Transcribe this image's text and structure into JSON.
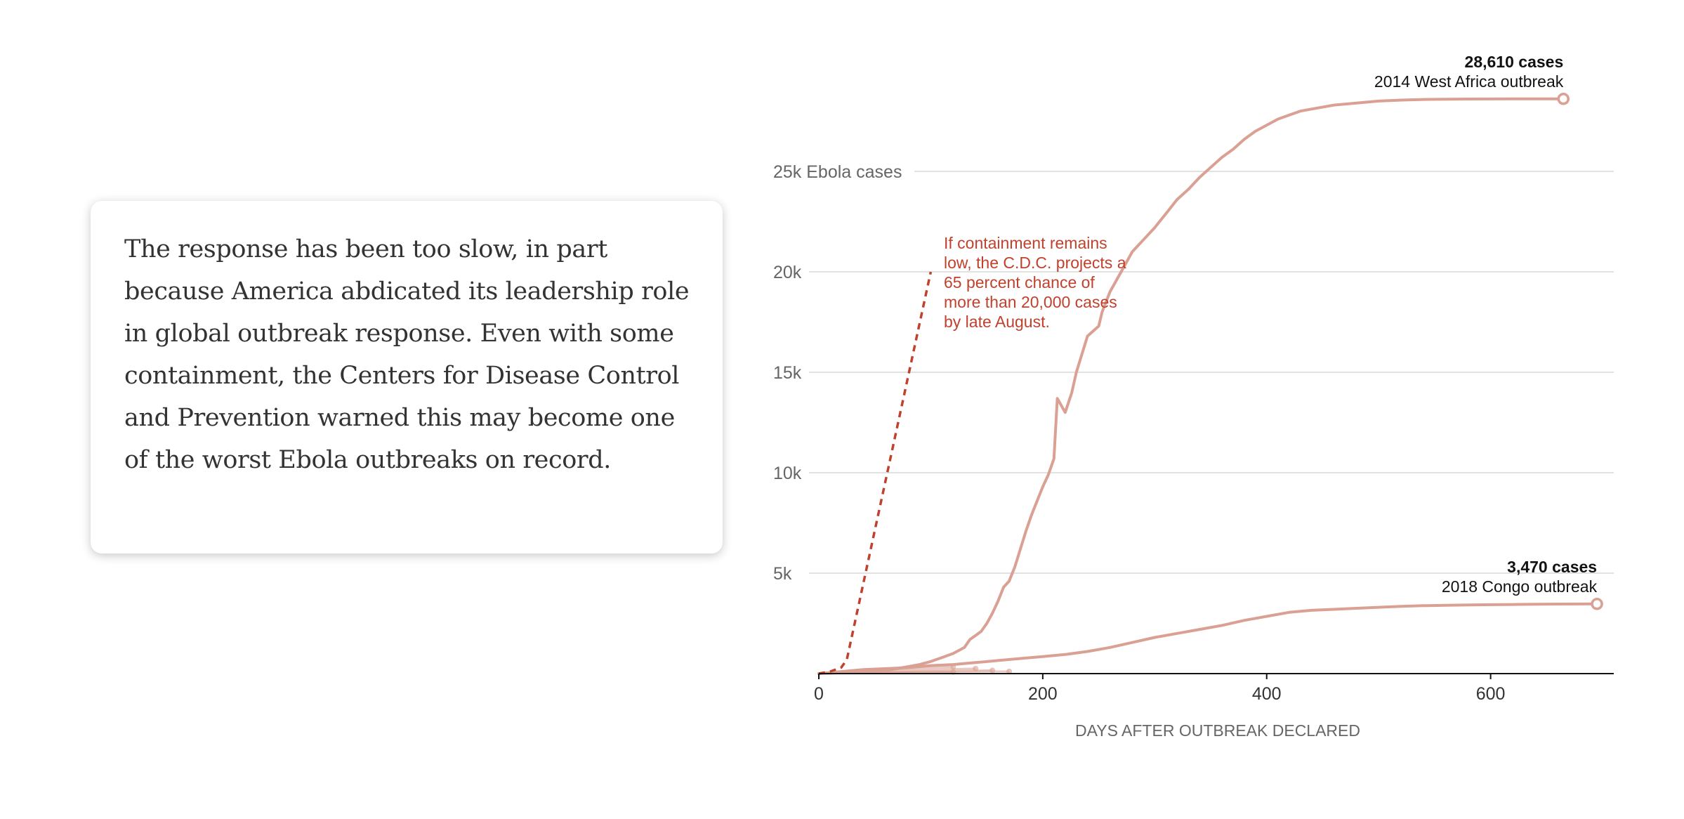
{
  "quote": {
    "text": "The response has been too slow, in part because America abdicated its leadership role in global outbreak response. Even with some containment, the Centers for Disease Control and Prevention warned this may become one of the worst Ebola outbreaks on record."
  },
  "chart_data": {
    "type": "line",
    "xlabel": "DAYS AFTER OUTBREAK DECLARED",
    "ylabel": "Ebola cases",
    "xlim": [
      0,
      710
    ],
    "ylim": [
      0,
      30000
    ],
    "x_ticks": [
      {
        "value": 0,
        "label": "0"
      },
      {
        "value": 200,
        "label": "200"
      },
      {
        "value": 400,
        "label": "400"
      },
      {
        "value": 600,
        "label": "600"
      }
    ],
    "y_ticks": [
      {
        "value": 5000,
        "label": "5k"
      },
      {
        "value": 10000,
        "label": "10k"
      },
      {
        "value": 15000,
        "label": "15k"
      },
      {
        "value": 20000,
        "label": "20k"
      },
      {
        "value": 25000,
        "label": "25k Ebola cases"
      }
    ],
    "grid": true,
    "colors": {
      "series": "#d9a093",
      "projection": "#c0412e",
      "grid": "#e2e2e2",
      "axis": "#121212"
    },
    "series": [
      {
        "id": "west-africa",
        "end_value_label": "28,610 cases",
        "end_name_label": "2014 West Africa outbreak",
        "x": [
          0,
          20,
          40,
          60,
          70,
          80,
          90,
          100,
          110,
          120,
          130,
          135,
          140,
          145,
          150,
          155,
          160,
          165,
          170,
          175,
          180,
          185,
          190,
          195,
          200,
          205,
          210,
          213,
          220,
          226,
          230,
          240,
          250,
          253,
          260,
          270,
          280,
          290,
          300,
          310,
          320,
          330,
          340,
          350,
          360,
          370,
          380,
          390,
          400,
          410,
          420,
          430,
          440,
          460,
          480,
          500,
          520,
          540,
          560,
          580,
          600,
          620,
          640,
          660,
          665
        ],
        "y": [
          0,
          50,
          100,
          150,
          250,
          350,
          450,
          600,
          800,
          1000,
          1300,
          1700,
          1900,
          2100,
          2500,
          3000,
          3600,
          4300,
          4600,
          5300,
          6200,
          7100,
          7900,
          8600,
          9300,
          9900,
          10700,
          13700,
          13000,
          14000,
          15000,
          16800,
          17300,
          18000,
          19000,
          20000,
          21000,
          21600,
          22200,
          22900,
          23600,
          24100,
          24700,
          25200,
          25700,
          26100,
          26600,
          27000,
          27300,
          27600,
          27800,
          28000,
          28100,
          28300,
          28400,
          28500,
          28550,
          28580,
          28590,
          28600,
          28605,
          28608,
          28610,
          28610,
          28610
        ]
      },
      {
        "id": "congo",
        "end_value_label": "3,470 cases",
        "end_name_label": "2018 Congo outbreak",
        "x": [
          0,
          20,
          40,
          60,
          80,
          100,
          120,
          140,
          160,
          180,
          200,
          220,
          240,
          260,
          280,
          300,
          320,
          340,
          360,
          380,
          400,
          420,
          440,
          460,
          480,
          500,
          520,
          540,
          560,
          580,
          600,
          620,
          640,
          660,
          680,
          695
        ],
        "y": [
          0,
          100,
          200,
          250,
          300,
          400,
          450,
          550,
          650,
          750,
          850,
          950,
          1100,
          1300,
          1550,
          1800,
          2000,
          2200,
          2400,
          2650,
          2850,
          3050,
          3150,
          3200,
          3250,
          3300,
          3350,
          3380,
          3400,
          3420,
          3430,
          3440,
          3450,
          3460,
          3465,
          3470
        ]
      },
      {
        "id": "projection",
        "dashed": true,
        "x": [
          0,
          10,
          20,
          25,
          100
        ],
        "y": [
          0,
          100,
          300,
          700,
          20000
        ]
      }
    ],
    "small_outbreaks": [
      {
        "x": [
          0,
          30,
          60,
          90,
          120
        ],
        "y": [
          0,
          100,
          200,
          280,
          330
        ]
      },
      {
        "x": [
          0,
          40,
          80,
          110,
          140
        ],
        "y": [
          0,
          80,
          160,
          210,
          250
        ]
      },
      {
        "x": [
          0,
          50,
          100,
          130,
          155
        ],
        "y": [
          0,
          60,
          110,
          140,
          160
        ]
      },
      {
        "x": [
          0,
          60,
          120,
          170
        ],
        "y": [
          0,
          50,
          90,
          110
        ]
      },
      {
        "x": [
          0,
          40,
          80,
          120
        ],
        "y": [
          0,
          40,
          70,
          80
        ]
      }
    ],
    "annotation": {
      "lines": [
        "If containment remains",
        "low, the C.D.C. projects a",
        "65 percent chance of",
        "more than 20,000 cases",
        "by late August."
      ]
    }
  }
}
